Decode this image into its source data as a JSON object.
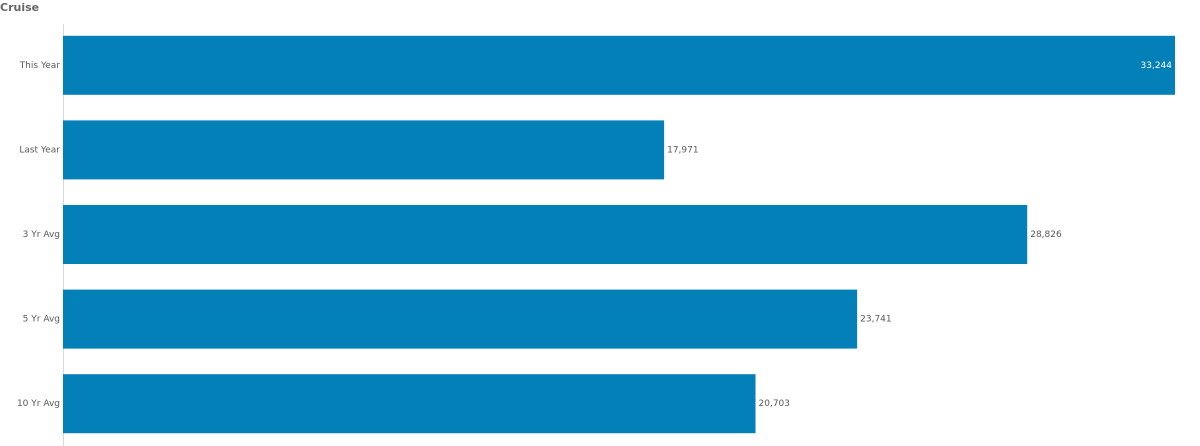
{
  "chart_data": {
    "type": "bar",
    "orientation": "horizontal",
    "title": "Cruise",
    "categories": [
      "This Year",
      "Last Year",
      "3 Yr Avg",
      "5 Yr Avg",
      "10 Yr Avg"
    ],
    "values": [
      33244,
      17971,
      28826,
      23741,
      20703
    ],
    "value_labels": [
      "33,244",
      "17,971",
      "28,826",
      "23,741",
      "20,703"
    ],
    "color": "#0480b8",
    "xlim": [
      0,
      33244
    ]
  }
}
